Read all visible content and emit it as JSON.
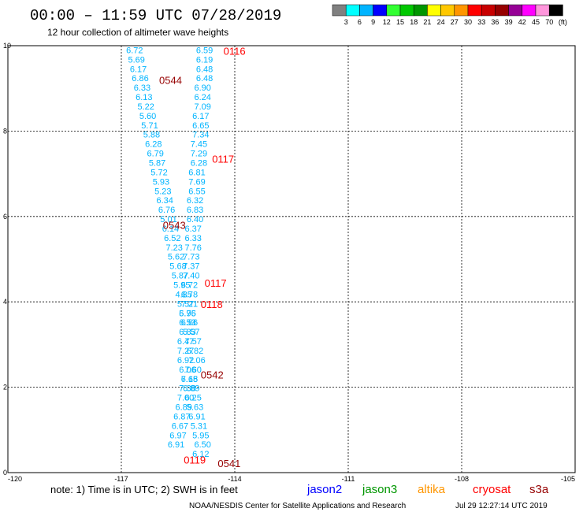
{
  "header": {
    "title": "00:00 – 11:59 UTC 07/28/2019",
    "subtitle": "12 hour collection of altimeter wave heights"
  },
  "color_scale": {
    "colors": [
      "#808080",
      "#00ffff",
      "#00b4ff",
      "#0000ff",
      "#32ff32",
      "#00c800",
      "#009600",
      "#ffff00",
      "#ffc800",
      "#ff9600",
      "#ff0000",
      "#c80000",
      "#960000",
      "#960096",
      "#ff00ff",
      "#ff96dc",
      "#000000"
    ],
    "labels": [
      "3",
      "6",
      "9",
      "12",
      "15",
      "18",
      "21",
      "24",
      "27",
      "30",
      "33",
      "36",
      "39",
      "42",
      "45",
      "70",
      "(ft)"
    ]
  },
  "chart_data": {
    "type": "scatter",
    "title": "00:00 – 11:59 UTC 07/28/2019",
    "subtitle": "12 hour collection of altimeter wave heights",
    "xlim": [
      -120,
      -105
    ],
    "ylim": [
      0,
      10
    ],
    "xticks": [
      "-120",
      "-117",
      "-114",
      "-111",
      "-108",
      "-105"
    ],
    "yticks": [
      "0",
      "2",
      "4",
      "6",
      "8",
      "10"
    ],
    "grid": true,
    "series": [
      {
        "name": "cryosat",
        "color": "#00b4ff",
        "points": [
          {
            "x": -116.65,
            "y": 9.9,
            "label": "6.72"
          },
          {
            "x": -116.6,
            "y": 9.68,
            "label": "5.69"
          },
          {
            "x": -116.55,
            "y": 9.46,
            "label": "6.17"
          },
          {
            "x": -116.5,
            "y": 9.24,
            "label": "6.86"
          },
          {
            "x": -116.45,
            "y": 9.02,
            "label": "6.33"
          },
          {
            "x": -116.4,
            "y": 8.8,
            "label": "6.13"
          },
          {
            "x": -116.35,
            "y": 8.58,
            "label": "5.22"
          },
          {
            "x": -116.3,
            "y": 8.36,
            "label": "5.60"
          },
          {
            "x": -116.25,
            "y": 8.14,
            "label": "5.71"
          },
          {
            "x": -116.2,
            "y": 7.92,
            "label": "5.88"
          },
          {
            "x": -116.15,
            "y": 7.7,
            "label": "6.28"
          },
          {
            "x": -116.1,
            "y": 7.48,
            "label": "6.79"
          },
          {
            "x": -116.05,
            "y": 7.26,
            "label": "5.87"
          },
          {
            "x": -116.0,
            "y": 7.04,
            "label": "5.72"
          },
          {
            "x": -115.95,
            "y": 6.82,
            "label": "5.93"
          },
          {
            "x": -115.9,
            "y": 6.6,
            "label": "5.23"
          },
          {
            "x": -115.85,
            "y": 6.38,
            "label": "6.34"
          },
          {
            "x": -115.8,
            "y": 6.16,
            "label": "6.76"
          },
          {
            "x": -115.75,
            "y": 5.94,
            "label": "5.01"
          },
          {
            "x": -115.7,
            "y": 5.72,
            "label": "6.14"
          },
          {
            "x": -115.65,
            "y": 5.5,
            "label": "6.52"
          },
          {
            "x": -115.6,
            "y": 5.28,
            "label": "7.23"
          },
          {
            "x": -115.55,
            "y": 5.06,
            "label": "5.62"
          },
          {
            "x": -115.5,
            "y": 4.84,
            "label": "5.68"
          },
          {
            "x": -115.45,
            "y": 4.62,
            "label": "5.87"
          },
          {
            "x": -115.4,
            "y": 4.4,
            "label": "5.95"
          },
          {
            "x": -115.35,
            "y": 4.18,
            "label": "4.85"
          },
          {
            "x": -115.3,
            "y": 3.96,
            "label": "5.57"
          },
          {
            "x": -115.25,
            "y": 3.74,
            "label": "5.75"
          },
          {
            "x": -115.2,
            "y": 3.52,
            "label": "6.66"
          },
          {
            "x": -115.15,
            "y": 3.3,
            "label": "5.57"
          },
          {
            "x": -115.1,
            "y": 3.08,
            "label": "7.57"
          },
          {
            "x": -115.05,
            "y": 2.86,
            "label": "6.82"
          },
          {
            "x": -115.0,
            "y": 2.64,
            "label": "7.06"
          },
          {
            "x": -115.1,
            "y": 2.42,
            "label": "7.60"
          },
          {
            "x": -115.2,
            "y": 2.2,
            "label": "7.15"
          },
          {
            "x": -115.25,
            "y": 1.98,
            "label": "7.38"
          },
          {
            "x": -115.3,
            "y": 1.76,
            "label": "7.00"
          },
          {
            "x": -115.35,
            "y": 1.54,
            "label": "6.89"
          },
          {
            "x": -115.4,
            "y": 1.32,
            "label": "6.87"
          },
          {
            "x": -115.45,
            "y": 1.1,
            "label": "6.67"
          },
          {
            "x": -115.5,
            "y": 0.88,
            "label": "6.97"
          },
          {
            "x": -115.55,
            "y": 0.66,
            "label": "6.91"
          }
        ]
      },
      {
        "name": "s3a",
        "color": "#00b4ff",
        "points": [
          {
            "x": -114.8,
            "y": 9.9,
            "label": "6.59"
          },
          {
            "x": -114.8,
            "y": 9.68,
            "label": "6.19"
          },
          {
            "x": -114.8,
            "y": 9.46,
            "label": "6.48"
          },
          {
            "x": -114.8,
            "y": 9.24,
            "label": "6.48"
          },
          {
            "x": -114.85,
            "y": 9.02,
            "label": "6.90"
          },
          {
            "x": -114.85,
            "y": 8.8,
            "label": "6.24"
          },
          {
            "x": -114.85,
            "y": 8.58,
            "label": "7.09"
          },
          {
            "x": -114.9,
            "y": 8.36,
            "label": "6.17"
          },
          {
            "x": -114.9,
            "y": 8.14,
            "label": "6.65"
          },
          {
            "x": -114.9,
            "y": 7.92,
            "label": "7.34"
          },
          {
            "x": -114.95,
            "y": 7.7,
            "label": "7.45"
          },
          {
            "x": -114.95,
            "y": 7.48,
            "label": "7.29"
          },
          {
            "x": -114.95,
            "y": 7.26,
            "label": "6.28"
          },
          {
            "x": -115.0,
            "y": 7.04,
            "label": "6.81"
          },
          {
            "x": -115.0,
            "y": 6.82,
            "label": "7.69"
          },
          {
            "x": -115.0,
            "y": 6.6,
            "label": "6.55"
          },
          {
            "x": -115.05,
            "y": 6.38,
            "label": "6.32"
          },
          {
            "x": -115.05,
            "y": 6.16,
            "label": "6.83"
          },
          {
            "x": -115.05,
            "y": 5.94,
            "label": "6.40"
          },
          {
            "x": -115.1,
            "y": 5.72,
            "label": "6.37"
          },
          {
            "x": -115.1,
            "y": 5.5,
            "label": "6.33"
          },
          {
            "x": -115.1,
            "y": 5.28,
            "label": "7.76"
          },
          {
            "x": -115.15,
            "y": 5.06,
            "label": "7.73"
          },
          {
            "x": -115.15,
            "y": 4.84,
            "label": "7.37"
          },
          {
            "x": -115.15,
            "y": 4.62,
            "label": "7.40"
          },
          {
            "x": -115.2,
            "y": 4.4,
            "label": "6.72"
          },
          {
            "x": -115.2,
            "y": 4.18,
            "label": "6.78"
          },
          {
            "x": -115.2,
            "y": 3.96,
            "label": "7.21"
          },
          {
            "x": -115.25,
            "y": 3.74,
            "label": "6.96"
          },
          {
            "x": -115.25,
            "y": 3.52,
            "label": "6.53"
          },
          {
            "x": -115.25,
            "y": 3.3,
            "label": "6.83"
          },
          {
            "x": -115.3,
            "y": 3.08,
            "label": "6.47"
          },
          {
            "x": -115.3,
            "y": 2.86,
            "label": "7.27"
          },
          {
            "x": -115.3,
            "y": 2.64,
            "label": "6.92"
          },
          {
            "x": -115.25,
            "y": 2.42,
            "label": "6.06"
          },
          {
            "x": -115.2,
            "y": 2.2,
            "label": "6.68"
          },
          {
            "x": -115.15,
            "y": 1.98,
            "label": "6.89"
          },
          {
            "x": -115.1,
            "y": 1.76,
            "label": "6.25"
          },
          {
            "x": -115.05,
            "y": 1.54,
            "label": "5.63"
          },
          {
            "x": -115.0,
            "y": 1.32,
            "label": "6.91"
          },
          {
            "x": -114.95,
            "y": 1.1,
            "label": "5.31"
          },
          {
            "x": -114.9,
            "y": 0.88,
            "label": "5.95"
          },
          {
            "x": -114.85,
            "y": 0.66,
            "label": "6.50"
          },
          {
            "x": -114.9,
            "y": 0.44,
            "label": "6.12"
          }
        ]
      }
    ],
    "pass_times": [
      {
        "x": -114.3,
        "y": 9.88,
        "label": "0116",
        "color": "#ff0000"
      },
      {
        "x": -116.0,
        "y": 9.2,
        "label": "0544",
        "color": "#960000"
      },
      {
        "x": -114.6,
        "y": 7.35,
        "label": "0117",
        "color": "#ff0000"
      },
      {
        "x": -115.9,
        "y": 5.8,
        "label": "0543",
        "color": "#960000"
      },
      {
        "x": -114.8,
        "y": 4.45,
        "label": "0117",
        "color": "#ff0000"
      },
      {
        "x": -114.9,
        "y": 3.95,
        "label": "0118",
        "color": "#ff0000"
      },
      {
        "x": -114.9,
        "y": 2.3,
        "label": "0542",
        "color": "#960000"
      },
      {
        "x": -115.35,
        "y": 0.3,
        "label": "0119",
        "color": "#ff0000"
      },
      {
        "x": -114.45,
        "y": 0.22,
        "label": "0541",
        "color": "#960000"
      }
    ]
  },
  "footer": {
    "note": "note: 1) Time is in UTC; 2) SWH is in feet",
    "legend": [
      {
        "name": "jason2",
        "color": "#0000ff"
      },
      {
        "name": "jason3",
        "color": "#009600"
      },
      {
        "name": "altika",
        "color": "#ff9600"
      },
      {
        "name": "cryosat",
        "color": "#ff0000"
      },
      {
        "name": "s3a",
        "color": "#960000"
      }
    ],
    "credit": "NOAA/NESDIS Center for Satellite Applications and Research",
    "timestamp": "Jul 29 12:27:14 UTC 2019"
  }
}
